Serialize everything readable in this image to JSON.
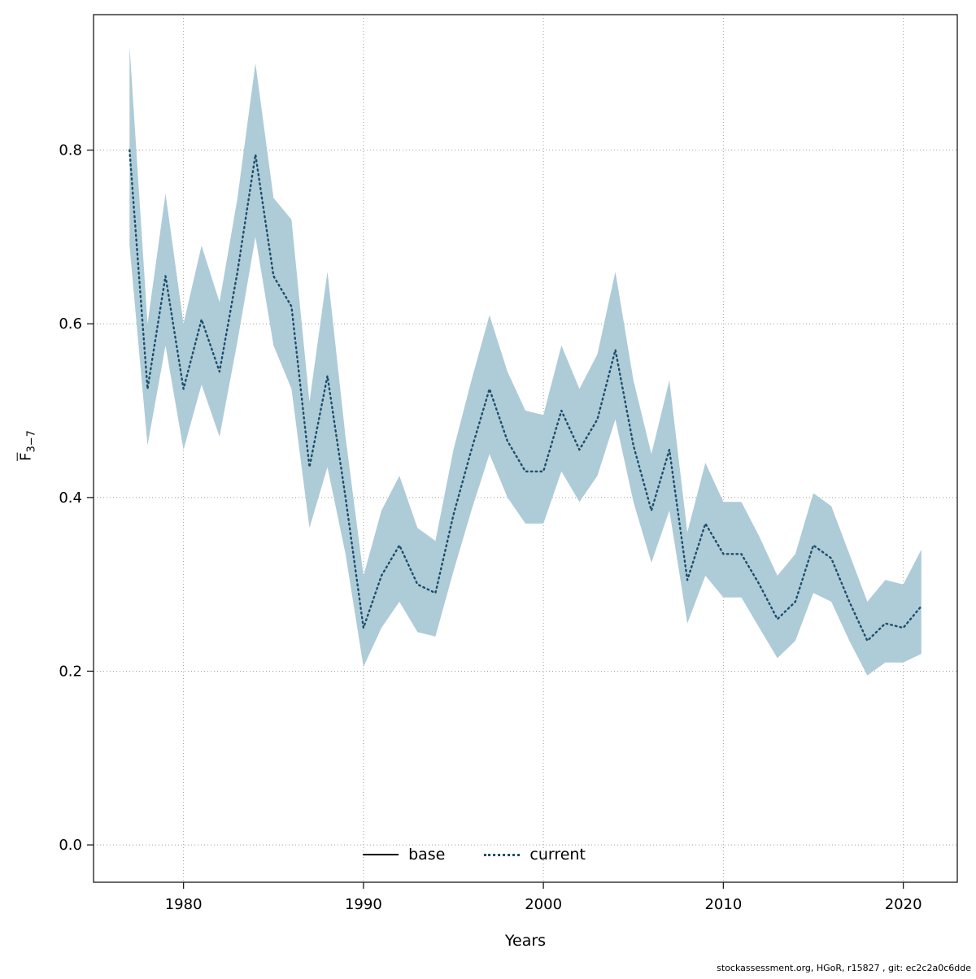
{
  "footer": "stockassessment.org, HGoR, r15827 , git: ec2c2a0c6dde",
  "axes": {
    "x_label": "Years",
    "y_label_main": "F",
    "y_label_sub": "3−7"
  },
  "legend": {
    "base_label": "base",
    "current_label": "current"
  },
  "colors": {
    "ribbon": "#aecbd8",
    "line": "#1b4e6b",
    "grid": "#9e9e9e",
    "axis": "#1a1a1a",
    "text": "#000000"
  },
  "chart_data": {
    "type": "line",
    "title": "",
    "xlabel": "Years",
    "ylabel": "Fbar 3−7",
    "legend_entries": [
      "base",
      "current"
    ],
    "legend_position": "bottom",
    "grid": true,
    "x_ticks": [
      1980,
      1990,
      2000,
      2010,
      2020
    ],
    "y_ticks": [
      0.0,
      0.2,
      0.4,
      0.6,
      0.8
    ],
    "xlim": [
      1975,
      2023
    ],
    "ylim": [
      -0.043,
      0.956
    ],
    "x": [
      1977,
      1978,
      1979,
      1980,
      1981,
      1982,
      1983,
      1984,
      1985,
      1986,
      1987,
      1988,
      1989,
      1990,
      1991,
      1992,
      1993,
      1994,
      1995,
      1996,
      1997,
      1998,
      1999,
      2000,
      2001,
      2002,
      2003,
      2004,
      2005,
      2006,
      2007,
      2008,
      2009,
      2010,
      2011,
      2012,
      2013,
      2014,
      2015,
      2016,
      2017,
      2018,
      2019,
      2020,
      2021
    ],
    "series": [
      {
        "name": "current",
        "style": "dotted",
        "values": [
          0.8,
          0.525,
          0.655,
          0.525,
          0.605,
          0.545,
          0.66,
          0.795,
          0.655,
          0.62,
          0.435,
          0.54,
          0.4,
          0.25,
          0.31,
          0.345,
          0.3,
          0.29,
          0.38,
          0.455,
          0.525,
          0.465,
          0.43,
          0.43,
          0.5,
          0.455,
          0.49,
          0.57,
          0.46,
          0.385,
          0.455,
          0.305,
          0.37,
          0.335,
          0.335,
          0.3,
          0.26,
          0.28,
          0.345,
          0.33,
          0.28,
          0.235,
          0.255,
          0.25,
          0.275
        ]
      }
    ],
    "band": {
      "name": "confidence-interval",
      "upper": [
        0.92,
        0.6,
        0.75,
        0.6,
        0.69,
        0.625,
        0.745,
        0.9,
        0.745,
        0.72,
        0.51,
        0.66,
        0.47,
        0.31,
        0.385,
        0.425,
        0.365,
        0.35,
        0.455,
        0.535,
        0.61,
        0.545,
        0.5,
        0.495,
        0.575,
        0.525,
        0.565,
        0.66,
        0.535,
        0.45,
        0.535,
        0.36,
        0.44,
        0.395,
        0.395,
        0.355,
        0.31,
        0.335,
        0.405,
        0.39,
        0.335,
        0.28,
        0.305,
        0.3,
        0.34
      ],
      "lower": [
        0.69,
        0.46,
        0.575,
        0.455,
        0.53,
        0.47,
        0.58,
        0.7,
        0.575,
        0.525,
        0.365,
        0.435,
        0.335,
        0.205,
        0.25,
        0.28,
        0.245,
        0.24,
        0.315,
        0.385,
        0.45,
        0.4,
        0.37,
        0.37,
        0.43,
        0.395,
        0.425,
        0.49,
        0.395,
        0.325,
        0.385,
        0.255,
        0.31,
        0.285,
        0.285,
        0.25,
        0.215,
        0.235,
        0.29,
        0.28,
        0.235,
        0.195,
        0.21,
        0.21,
        0.22
      ]
    }
  }
}
